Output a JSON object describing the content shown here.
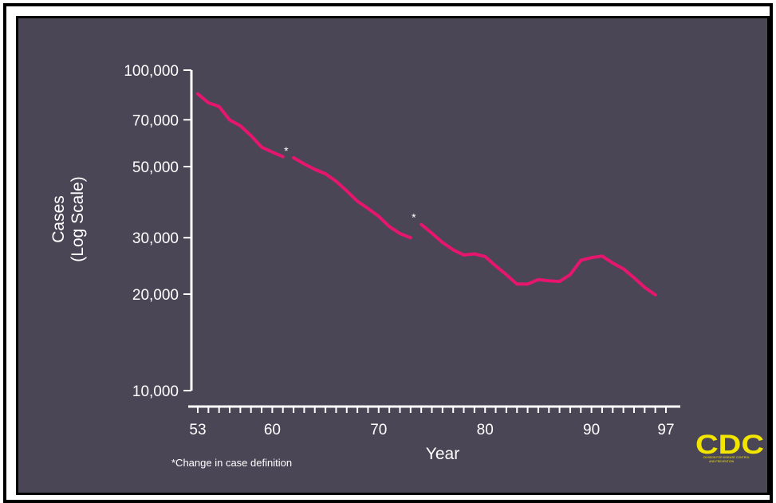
{
  "chart_data": {
    "type": "line",
    "ylabel_lines": [
      "Cases",
      "(Log Scale)"
    ],
    "xlabel": "Year",
    "yscale": "log",
    "ylim": [
      10000,
      100000
    ],
    "xlim": [
      53,
      97
    ],
    "y_ticks": [
      {
        "value": 10000,
        "label": "10,000"
      },
      {
        "value": 20000,
        "label": "20,000"
      },
      {
        "value": 30000,
        "label": "30,000"
      },
      {
        "value": 50000,
        "label": "50,000"
      },
      {
        "value": 70000,
        "label": "70,000"
      },
      {
        "value": 100000,
        "label": "100,000"
      }
    ],
    "x_ticks": [
      {
        "value": 53,
        "label": "53"
      },
      {
        "value": 60,
        "label": "60"
      },
      {
        "value": 70,
        "label": "70"
      },
      {
        "value": 80,
        "label": "80"
      },
      {
        "value": 90,
        "label": "90"
      },
      {
        "value": 97,
        "label": "97"
      }
    ],
    "series": [
      {
        "segments": [
          [
            [
              53,
              84300
            ],
            [
              54,
              79100
            ],
            [
              55,
              77000
            ],
            [
              56,
              69900
            ],
            [
              57,
              67000
            ],
            [
              58,
              62500
            ],
            [
              59,
              57500
            ],
            [
              60,
              55500
            ],
            [
              61,
              53700
            ]
          ],
          [
            [
              62,
              53300
            ],
            [
              63,
              51000
            ],
            [
              64,
              49000
            ],
            [
              65,
              47500
            ],
            [
              66,
              45000
            ],
            [
              67,
              42000
            ],
            [
              68,
              39000
            ],
            [
              69,
              37000
            ],
            [
              70,
              35000
            ],
            [
              71,
              32500
            ],
            [
              72,
              30900
            ],
            [
              73,
              30000
            ]
          ],
          [
            [
              74,
              33000
            ],
            [
              75,
              31000
            ],
            [
              76,
              29000
            ],
            [
              77,
              27500
            ],
            [
              78,
              26500
            ],
            [
              79,
              26700
            ],
            [
              80,
              26200
            ],
            [
              81,
              24500
            ],
            [
              82,
              23000
            ],
            [
              83,
              21500
            ],
            [
              84,
              21500
            ],
            [
              85,
              22200
            ],
            [
              86,
              22000
            ],
            [
              87,
              21900
            ],
            [
              88,
              23000
            ],
            [
              89,
              25500
            ],
            [
              90,
              26000
            ],
            [
              91,
              26300
            ],
            [
              92,
              25000
            ],
            [
              93,
              24000
            ],
            [
              94,
              22500
            ],
            [
              95,
              21000
            ],
            [
              96,
              19900
            ]
          ]
        ]
      }
    ],
    "definition_change_markers": [
      62,
      74
    ],
    "annotation": "*Change in case definition",
    "marker_symbol": "*",
    "line_color": "#e6156e"
  },
  "logo": {
    "text": "CDC",
    "subtitle_lines": [
      "DIVISION FOR DISEASE CONTROL",
      "AND PREVENTION"
    ],
    "color": "#f2e600"
  }
}
